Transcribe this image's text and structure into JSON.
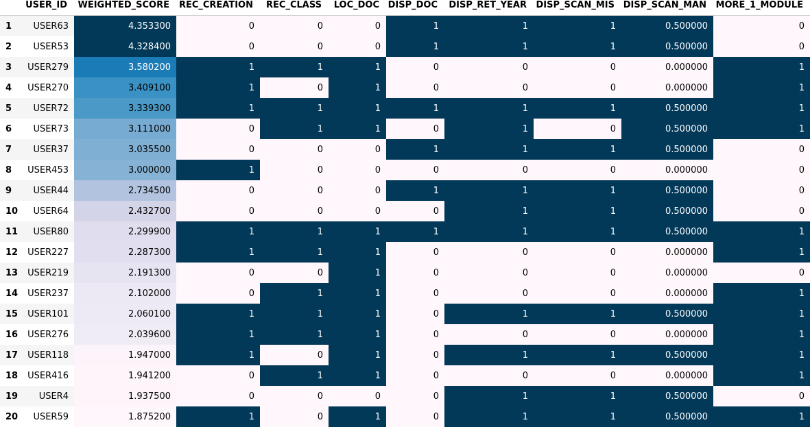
{
  "columns": [
    "USER_ID",
    "WEIGHTED_SCORE",
    "REC_CREATION",
    "REC_CLASS",
    "LOC_DOC",
    "DISP_DOC",
    "DISP_RET_YEAR",
    "DISP_SCAN_MIS",
    "DISP_SCAN_MAN",
    "MORE_1_MODULE"
  ],
  "colors": {
    "dark": "#023858",
    "light": "#fff7fb",
    "score_scale": [
      "#fff7fb",
      "#ece7f2",
      "#d0d1e6",
      "#a6bddb",
      "#74a9cf",
      "#3690c0",
      "#0570b0"
    ]
  },
  "rows": [
    {
      "index": "1",
      "user_id": "USER63",
      "weighted_score": "4.353300",
      "score_color": "#023858",
      "rec_creation": "0",
      "rec_class": "0",
      "loc_doc": "0",
      "disp_doc": "1",
      "disp_ret_year": "1",
      "disp_scan_mis": "1",
      "disp_scan_man": "0.500000",
      "more_1_module": "0"
    },
    {
      "index": "2",
      "user_id": "USER53",
      "weighted_score": "4.328400",
      "score_color": "#023858",
      "rec_creation": "0",
      "rec_class": "0",
      "loc_doc": "0",
      "disp_doc": "1",
      "disp_ret_year": "1",
      "disp_scan_mis": "1",
      "disp_scan_man": "0.500000",
      "more_1_module": "0"
    },
    {
      "index": "3",
      "user_id": "USER279",
      "weighted_score": "3.580200",
      "score_color": "#1b7bb7",
      "rec_creation": "1",
      "rec_class": "1",
      "loc_doc": "1",
      "disp_doc": "0",
      "disp_ret_year": "0",
      "disp_scan_mis": "0",
      "disp_scan_man": "0.000000",
      "more_1_module": "1"
    },
    {
      "index": "4",
      "user_id": "USER270",
      "weighted_score": "3.409100",
      "score_color": "#3a91c3",
      "rec_creation": "1",
      "rec_class": "0",
      "loc_doc": "1",
      "disp_doc": "0",
      "disp_ret_year": "0",
      "disp_scan_mis": "0",
      "disp_scan_man": "0.000000",
      "more_1_module": "1"
    },
    {
      "index": "5",
      "user_id": "USER72",
      "weighted_score": "3.339300",
      "score_color": "#4a99c6",
      "rec_creation": "1",
      "rec_class": "1",
      "loc_doc": "1",
      "disp_doc": "1",
      "disp_ret_year": "1",
      "disp_scan_mis": "1",
      "disp_scan_man": "0.500000",
      "more_1_module": "1"
    },
    {
      "index": "6",
      "user_id": "USER73",
      "weighted_score": "3.111000",
      "score_color": "#78abd1",
      "rec_creation": "0",
      "rec_class": "1",
      "loc_doc": "1",
      "disp_doc": "0",
      "disp_ret_year": "1",
      "disp_scan_mis": "0",
      "disp_scan_man": "0.500000",
      "more_1_module": "1"
    },
    {
      "index": "7",
      "user_id": "USER37",
      "weighted_score": "3.035500",
      "score_color": "#7fafd3",
      "rec_creation": "0",
      "rec_class": "0",
      "loc_doc": "0",
      "disp_doc": "1",
      "disp_ret_year": "1",
      "disp_scan_mis": "1",
      "disp_scan_man": "0.500000",
      "more_1_module": "0"
    },
    {
      "index": "8",
      "user_id": "USER453",
      "weighted_score": "3.000000",
      "score_color": "#86b3d5",
      "rec_creation": "1",
      "rec_class": "0",
      "loc_doc": "0",
      "disp_doc": "0",
      "disp_ret_year": "0",
      "disp_scan_mis": "0",
      "disp_scan_man": "0.000000",
      "more_1_module": "0"
    },
    {
      "index": "9",
      "user_id": "USER44",
      "weighted_score": "2.734500",
      "score_color": "#b1c3df",
      "rec_creation": "0",
      "rec_class": "0",
      "loc_doc": "0",
      "disp_doc": "1",
      "disp_ret_year": "1",
      "disp_scan_mis": "1",
      "disp_scan_man": "0.500000",
      "more_1_module": "0"
    },
    {
      "index": "10",
      "user_id": "USER64",
      "weighted_score": "2.432700",
      "score_color": "#d4d4e8",
      "rec_creation": "0",
      "rec_class": "0",
      "loc_doc": "0",
      "disp_doc": "0",
      "disp_ret_year": "1",
      "disp_scan_mis": "1",
      "disp_scan_man": "0.500000",
      "more_1_module": "0"
    },
    {
      "index": "11",
      "user_id": "USER80",
      "weighted_score": "2.299900",
      "score_color": "#e0ddee",
      "rec_creation": "1",
      "rec_class": "1",
      "loc_doc": "1",
      "disp_doc": "1",
      "disp_ret_year": "1",
      "disp_scan_mis": "1",
      "disp_scan_man": "0.500000",
      "more_1_module": "1"
    },
    {
      "index": "12",
      "user_id": "USER227",
      "weighted_score": "2.287300",
      "score_color": "#e1deef",
      "rec_creation": "1",
      "rec_class": "1",
      "loc_doc": "1",
      "disp_doc": "0",
      "disp_ret_year": "0",
      "disp_scan_mis": "0",
      "disp_scan_man": "0.000000",
      "more_1_module": "1"
    },
    {
      "index": "13",
      "user_id": "USER219",
      "weighted_score": "2.191300",
      "score_color": "#e7e4f2",
      "rec_creation": "0",
      "rec_class": "0",
      "loc_doc": "1",
      "disp_doc": "0",
      "disp_ret_year": "0",
      "disp_scan_mis": "0",
      "disp_scan_man": "0.000000",
      "more_1_module": "0"
    },
    {
      "index": "14",
      "user_id": "USER237",
      "weighted_score": "2.102000",
      "score_color": "#ece8f4",
      "rec_creation": "0",
      "rec_class": "1",
      "loc_doc": "1",
      "disp_doc": "0",
      "disp_ret_year": "0",
      "disp_scan_mis": "0",
      "disp_scan_man": "0.000000",
      "more_1_module": "1"
    },
    {
      "index": "15",
      "user_id": "USER101",
      "weighted_score": "2.060100",
      "score_color": "#eeeaf5",
      "rec_creation": "1",
      "rec_class": "1",
      "loc_doc": "1",
      "disp_doc": "0",
      "disp_ret_year": "1",
      "disp_scan_mis": "1",
      "disp_scan_man": "0.500000",
      "more_1_module": "1"
    },
    {
      "index": "16",
      "user_id": "USER276",
      "weighted_score": "2.039600",
      "score_color": "#f0ecf6",
      "rec_creation": "1",
      "rec_class": "1",
      "loc_doc": "1",
      "disp_doc": "0",
      "disp_ret_year": "0",
      "disp_scan_mis": "0",
      "disp_scan_man": "0.000000",
      "more_1_module": "1"
    },
    {
      "index": "17",
      "user_id": "USER118",
      "weighted_score": "1.947000",
      "score_color": "#fcf4fa",
      "rec_creation": "1",
      "rec_class": "0",
      "loc_doc": "1",
      "disp_doc": "0",
      "disp_ret_year": "1",
      "disp_scan_mis": "1",
      "disp_scan_man": "0.500000",
      "more_1_module": "1"
    },
    {
      "index": "18",
      "user_id": "USER416",
      "weighted_score": "1.941200",
      "score_color": "#fdf5fa",
      "rec_creation": "0",
      "rec_class": "1",
      "loc_doc": "1",
      "disp_doc": "0",
      "disp_ret_year": "0",
      "disp_scan_mis": "0",
      "disp_scan_man": "0.000000",
      "more_1_module": "1"
    },
    {
      "index": "19",
      "user_id": "USER4",
      "weighted_score": "1.937500",
      "score_color": "#fdf5fa",
      "rec_creation": "0",
      "rec_class": "0",
      "loc_doc": "0",
      "disp_doc": "0",
      "disp_ret_year": "1",
      "disp_scan_mis": "1",
      "disp_scan_man": "0.500000",
      "more_1_module": "0"
    },
    {
      "index": "20",
      "user_id": "USER59",
      "weighted_score": "1.875200",
      "score_color": "#fff7fb",
      "rec_creation": "1",
      "rec_class": "0",
      "loc_doc": "1",
      "disp_doc": "0",
      "disp_ret_year": "1",
      "disp_scan_mis": "1",
      "disp_scan_man": "0.500000",
      "more_1_module": "1"
    }
  ]
}
